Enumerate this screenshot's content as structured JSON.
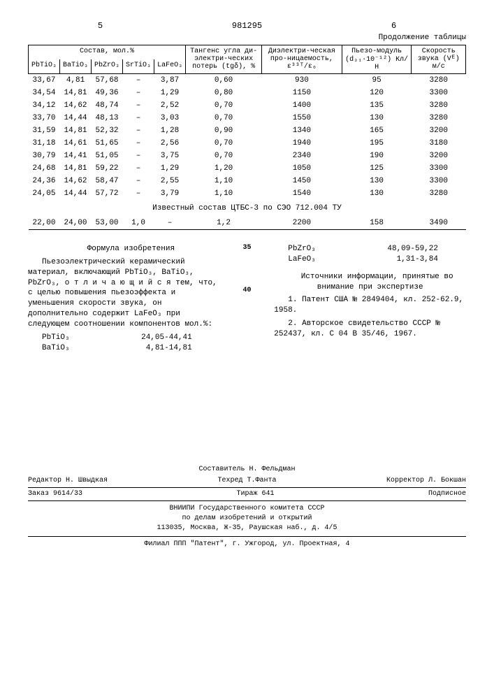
{
  "page_left": "5",
  "doc_number": "981295",
  "page_right": "6",
  "continuation": "Продолжение таблицы",
  "table": {
    "group_header": "Состав, мол.%",
    "columns": [
      "PbTiO₃",
      "BaTiO₃",
      "PbZrO₃",
      "SrTiO₃",
      "LaFeO₃",
      "Тангенс угла ди-электри-ческих потерь (tgδ), %",
      "Диэлектри-ческая про-ницаемость, ε³³ᵀ/ε₀",
      "Пьезо-модуль (d₃₁·10⁻¹²) Кл/Н",
      "Скорость звука (Vᴱ) м/с"
    ],
    "rows": [
      [
        "33,67",
        "4,81",
        "57,68",
        "–",
        "3,87",
        "0,60",
        "930",
        "95",
        "3280"
      ],
      [
        "34,54",
        "14,81",
        "49,36",
        "–",
        "1,29",
        "0,80",
        "1150",
        "120",
        "3300"
      ],
      [
        "34,12",
        "14,62",
        "48,74",
        "–",
        "2,52",
        "0,70",
        "1400",
        "135",
        "3280"
      ],
      [
        "33,70",
        "14,44",
        "48,13",
        "–",
        "3,03",
        "0,70",
        "1550",
        "130",
        "3280"
      ],
      [
        "31,59",
        "14,81",
        "52,32",
        "–",
        "1,28",
        "0,90",
        "1340",
        "165",
        "3200"
      ],
      [
        "31,18",
        "14,61",
        "51,65",
        "–",
        "2,56",
        "0,70",
        "1940",
        "195",
        "3180"
      ],
      [
        "30,79",
        "14,41",
        "51,05",
        "–",
        "3,75",
        "0,70",
        "2340",
        "190",
        "3200"
      ],
      [
        "24,68",
        "14,81",
        "59,22",
        "–",
        "1,29",
        "1,20",
        "1050",
        "125",
        "3300"
      ],
      [
        "24,36",
        "14,62",
        "58,47",
        "–",
        "2,55",
        "1,10",
        "1450",
        "130",
        "3300"
      ],
      [
        "24,05",
        "14,44",
        "57,72",
        "–",
        "3,79",
        "1,10",
        "1540",
        "130",
        "3280"
      ]
    ],
    "known_label": "Известный состав ЦТБС-3 по СЭО 712.004 ТУ",
    "known_row": [
      "22,00",
      "24,00",
      "53,00",
      "1,0",
      "–",
      "1,2",
      "2200",
      "158",
      "3490"
    ]
  },
  "claims": {
    "title": "Формула изобретения",
    "text": "Пьезоэлектрический керамический материал, включающий PbTiO₃, BaTiO₃, PbZrO₃, о т л и ч а ю щ и й с я  тем, что, с целью повышения пьезоэффекта и уменьшения скорости звука, он дополнительно содержит LaFeO₃ при следующем соотношении компонентов мол.%:",
    "components": [
      {
        "name": "PbTiO₃",
        "range": "24,05-44,41"
      },
      {
        "name": "BaTiO₃",
        "range": "4,81-14,81"
      },
      {
        "name": "PbZrO₃",
        "range": "48,09-59,22"
      },
      {
        "name": "LaFeO₃",
        "range": "1,31-3,84"
      }
    ],
    "line35": "35",
    "line40": "40"
  },
  "sources": {
    "title": "Источники информации, принятые во внимание при экспертизе",
    "items": [
      "1. Патент США № 2849404, кл. 252-62.9, 1958.",
      "2. Авторское свидетельство СССР № 252437, кл. C 04 B 35/46, 1967."
    ]
  },
  "footer": {
    "compiler": "Составитель Н. Фельдман",
    "editor": "Редактор Н. Швыдкая",
    "techred": "Техред Т.Фанта",
    "corrector": "Корректор Л. Бокшан",
    "order": "Заказ 9614/33",
    "copies": "Тираж 641",
    "subscription": "Подписное",
    "org1": "ВНИИПИ Государственного комитета СССР",
    "org2": "по делам изобретений и открытий",
    "addr1": "113035, Москва, Ж-35, Раушская наб., д. 4/5",
    "addr2": "Филиал ППП \"Патент\", г. Ужгород, ул. Проектная, 4"
  }
}
